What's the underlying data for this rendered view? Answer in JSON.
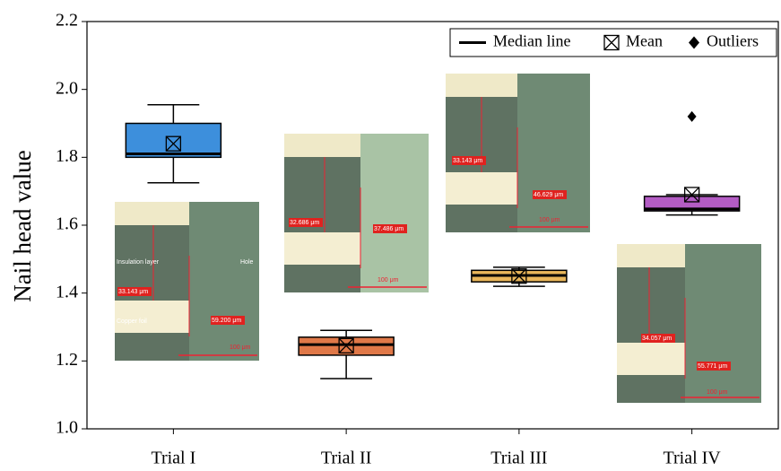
{
  "chart_data": {
    "type": "box",
    "ylabel": "Nail head value",
    "categories": [
      "Trial I",
      "Trial II",
      "Trial III",
      "Trial IV"
    ],
    "colors": [
      "#3d8fdc",
      "#e07848",
      "#e9b65a",
      "#b35cc4"
    ],
    "boxes": [
      {
        "whislo": 1.725,
        "q1": 1.8,
        "med": 1.81,
        "q3": 1.9,
        "whishi": 1.955,
        "mean": 1.84,
        "fliers": []
      },
      {
        "whislo": 1.148,
        "q1": 1.217,
        "med": 1.248,
        "q3": 1.27,
        "whishi": 1.29,
        "mean": 1.245,
        "fliers": []
      },
      {
        "whislo": 1.42,
        "q1": 1.433,
        "med": 1.452,
        "q3": 1.467,
        "whishi": 1.476,
        "mean": 1.45,
        "fliers": []
      },
      {
        "whislo": 1.63,
        "q1": 1.642,
        "med": 1.648,
        "q3": 1.685,
        "whishi": 1.69,
        "mean": 1.69,
        "fliers": [
          1.92
        ]
      }
    ],
    "ylim": [
      1.0,
      2.2
    ],
    "yticks": [
      {
        "value": 1.0,
        "label": "1.0"
      },
      1.2,
      1.4,
      1.6,
      1.8,
      {
        "value": 2.0,
        "label": "2.0"
      },
      2.2
    ],
    "legend": [
      "Median line",
      "Mean",
      "Outliers"
    ],
    "legend_position": "upper right"
  },
  "insets": [
    {
      "labels": [
        "Insulation layer",
        "Hole",
        "33.143 μm",
        "Copper foil",
        "59.200 μm",
        "100 μm"
      ]
    },
    {
      "labels": [
        "32.686 μm",
        "37.486 μm",
        "100 μm"
      ]
    },
    {
      "labels": [
        "33.143 μm",
        "46.629 μm",
        "100 μm"
      ]
    },
    {
      "labels": [
        "34.057 μm",
        "55.771 μm",
        "100 μm"
      ]
    }
  ]
}
